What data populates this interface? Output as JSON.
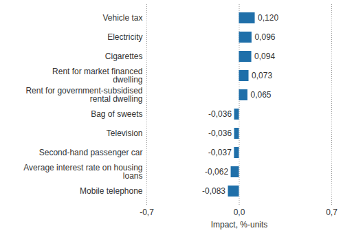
{
  "chart_data": {
    "type": "bar",
    "orientation": "horizontal",
    "categories": [
      "Vehicle tax",
      "Electricity",
      "Cigarettes",
      "Rent for market financed dwelling",
      "Rent for government-subsidised rental dwelling",
      "Bag of sweets",
      "Television",
      "Second-hand passenger car",
      "Average interest rate on housing loans",
      "Mobile telephone"
    ],
    "values": [
      0.12,
      0.096,
      0.094,
      0.073,
      0.065,
      -0.036,
      -0.036,
      -0.037,
      -0.062,
      -0.083
    ],
    "value_labels": [
      "0,120",
      "0,096",
      "0,094",
      "0,073",
      "0,065",
      "-0,036",
      "-0,036",
      "-0,037",
      "-0,062",
      "-0,083"
    ],
    "data_labels": true,
    "color": "#1f6fa9",
    "x_label": "Impact, %-units",
    "xlim": [
      -0.7,
      0.7
    ],
    "xticks": [
      {
        "value": -0.7,
        "label": "-0,7"
      },
      {
        "value": 0,
        "label": "0,0"
      },
      {
        "value": 0.7,
        "label": "0,7"
      }
    ],
    "grid": true
  }
}
